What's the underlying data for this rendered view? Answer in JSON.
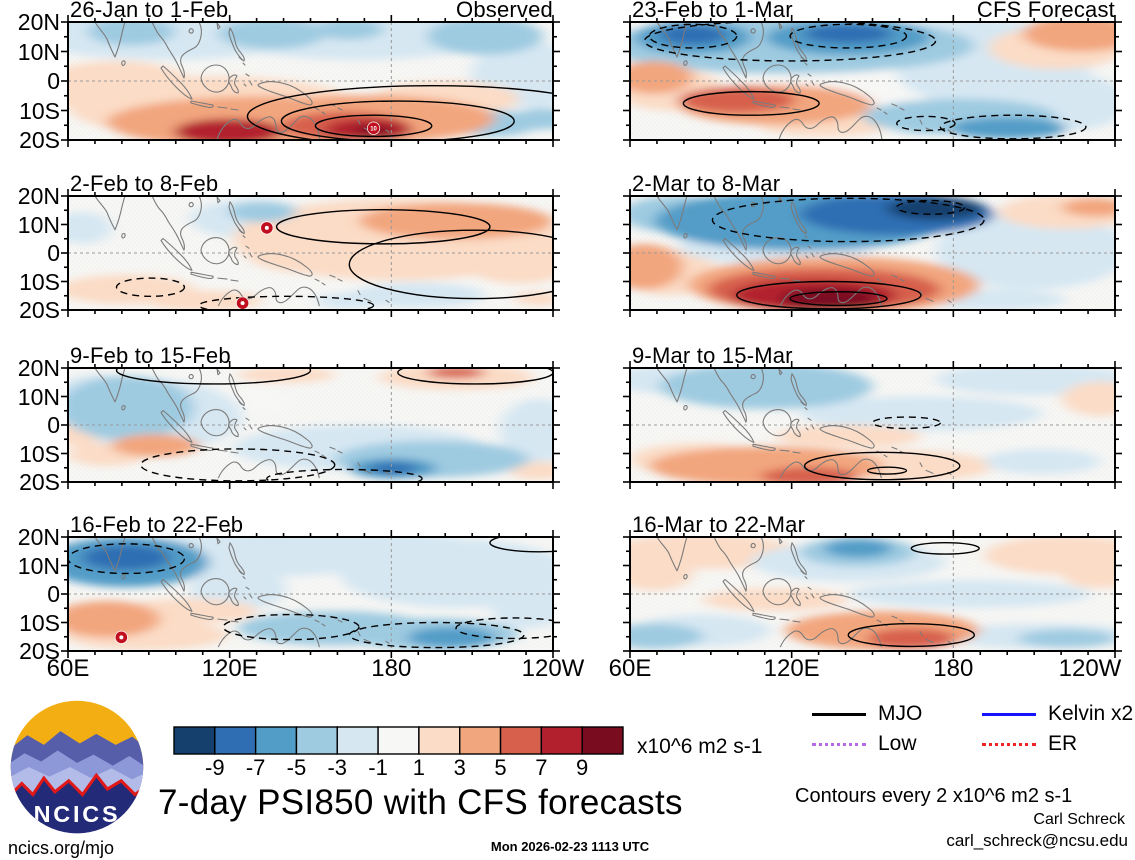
{
  "logo": {
    "text": "NCICS"
  },
  "footer": {
    "site": "ncics.org/mjo",
    "main_title": "7-day PSI850 with CFS forecasts",
    "timestamp": "Mon 2026-02-23 1113 UTC",
    "author": "Carl Schreck",
    "email": "carl_schreck@ncsu.edu"
  },
  "colorbar": {
    "labels": [
      "-9",
      "-7",
      "-5",
      "-3",
      "-1",
      "1",
      "3",
      "5",
      "7",
      "9"
    ],
    "colors": [
      "#15406e",
      "#2f6eb3",
      "#529dc8",
      "#9fcbe1",
      "#d6e7f2",
      "#f7f7f5",
      "#fbdcc6",
      "#f2a67e",
      "#d7604d",
      "#b2202e",
      "#7a0c20"
    ],
    "units": "x10^6 m2 s-1"
  },
  "legend": {
    "items": [
      {
        "label": "MJO",
        "color": "#000000",
        "style": "solid"
      },
      {
        "label": "Kelvin x2",
        "color": "#1414ff",
        "style": "solid"
      },
      {
        "label": "Low",
        "color": "#b76ae8",
        "style": "dotted"
      },
      {
        "label": "ER",
        "color": "#f02424",
        "style": "dotted"
      }
    ],
    "note": "Contours every 2 x10^6 m2 s-1"
  },
  "chart_data": {
    "type": "filled-contour-map-grid",
    "variable": "7-day mean 850-hPa streamfunction (PSI850) anomaly",
    "units": "x10^6 m2 s-1",
    "contour_interval": "2 x10^6 m2 s-1",
    "x_tick_labels": [
      "60E",
      "120E",
      "180",
      "120W"
    ],
    "y_tick_labels": [
      "20N",
      "10N",
      "0",
      "10S",
      "20S"
    ],
    "columns": [
      {
        "heading": "Observed"
      },
      {
        "heading": "CFS Forecast"
      }
    ],
    "anomaly_format": "[x_pct, y_pct, rx_pct, ry_pct, color_index 0..10 mapping -10..+10 x10^6 m2 s-1]",
    "contour_format": "[x_pct, y_pct, rx_pct, ry_pct, line_style]",
    "cyclone_format": "[x_pct, y_pct, label]",
    "panels": [
      {
        "title": "26-Jan to 1-Feb",
        "tag": "Observed",
        "column": "left",
        "anomalies": [
          [
            20,
            10,
            30,
            22,
            4
          ],
          [
            60,
            12,
            28,
            20,
            4
          ],
          [
            13,
            8,
            9,
            12,
            3
          ],
          [
            42,
            10,
            11,
            13,
            3
          ],
          [
            58,
            6,
            7,
            9,
            3
          ],
          [
            86,
            12,
            12,
            16,
            3
          ],
          [
            95,
            45,
            12,
            28,
            4
          ],
          [
            88,
            86,
            9,
            11,
            3
          ],
          [
            98,
            82,
            6,
            9,
            3
          ],
          [
            10,
            55,
            16,
            22,
            6
          ],
          [
            30,
            72,
            30,
            26,
            6
          ],
          [
            40,
            85,
            32,
            22,
            7
          ],
          [
            62,
            82,
            26,
            20,
            7
          ],
          [
            33,
            93,
            11,
            11,
            9
          ],
          [
            57,
            88,
            13,
            12,
            8
          ],
          [
            62,
            91,
            9,
            9,
            9
          ],
          [
            63,
            92,
            4,
            4,
            10
          ],
          [
            78,
            65,
            15,
            15,
            6
          ]
        ],
        "contours": [
          [
            63,
            88,
            12,
            9,
            "solid"
          ],
          [
            68,
            84,
            24,
            17,
            "solid"
          ],
          [
            75,
            80,
            38,
            26,
            "solid"
          ]
        ],
        "cyclones": [
          [
            63,
            90,
            "10"
          ]
        ]
      },
      {
        "title": "2-Feb to 8-Feb",
        "column": "left",
        "anomalies": [
          [
            38,
            20,
            13,
            17,
            4
          ],
          [
            40,
            14,
            7,
            9,
            3
          ],
          [
            3,
            28,
            6,
            14,
            4
          ],
          [
            68,
            38,
            34,
            36,
            6
          ],
          [
            80,
            22,
            20,
            16,
            7
          ],
          [
            93,
            55,
            12,
            22,
            6
          ],
          [
            52,
            52,
            15,
            16,
            6
          ],
          [
            12,
            82,
            14,
            13,
            6
          ],
          [
            28,
            92,
            12,
            9,
            6
          ],
          [
            72,
            87,
            14,
            11,
            4
          ],
          [
            58,
            92,
            7,
            7,
            4
          ],
          [
            97,
            90,
            5,
            6,
            6
          ]
        ],
        "contours": [
          [
            65,
            27,
            22,
            15,
            "solid"
          ],
          [
            84,
            60,
            26,
            30,
            "solid"
          ],
          [
            17,
            80,
            7,
            8,
            "dashed"
          ],
          [
            45,
            96,
            18,
            8,
            "dashed"
          ]
        ],
        "cyclones": [
          [
            41,
            28,
            ""
          ],
          [
            36,
            94,
            ""
          ]
        ]
      },
      {
        "title": "9-Feb to 15-Feb",
        "column": "left",
        "anomalies": [
          [
            12,
            35,
            14,
            28,
            3
          ],
          [
            6,
            20,
            8,
            14,
            4
          ],
          [
            16,
            42,
            20,
            32,
            4
          ],
          [
            60,
            70,
            26,
            20,
            4
          ],
          [
            75,
            80,
            20,
            16,
            3
          ],
          [
            67,
            88,
            9,
            9,
            2
          ],
          [
            67,
            88,
            5,
            5,
            1
          ],
          [
            97,
            55,
            8,
            28,
            4
          ],
          [
            18,
            68,
            9,
            10,
            7
          ],
          [
            8,
            76,
            8,
            10,
            6
          ],
          [
            2,
            57,
            5,
            12,
            6
          ],
          [
            80,
            8,
            16,
            11,
            6
          ],
          [
            80,
            4,
            6,
            5,
            8
          ],
          [
            97,
            90,
            6,
            8,
            6
          ],
          [
            45,
            6,
            10,
            7,
            6
          ],
          [
            35,
            30,
            12,
            10,
            5
          ]
        ],
        "contours": [
          [
            30,
            2,
            20,
            12,
            "solid"
          ],
          [
            84,
            4,
            16,
            10,
            "solid"
          ],
          [
            35,
            85,
            20,
            14,
            "dashed"
          ],
          [
            57,
            97,
            16,
            8,
            "dashed"
          ]
        ],
        "cyclones": []
      },
      {
        "title": "16-Feb to 22-Feb",
        "column": "left",
        "anomalies": [
          [
            12,
            22,
            17,
            22,
            2
          ],
          [
            12,
            18,
            9,
            11,
            1
          ],
          [
            40,
            15,
            28,
            20,
            4
          ],
          [
            62,
            10,
            24,
            14,
            4
          ],
          [
            80,
            32,
            24,
            30,
            4
          ],
          [
            35,
            45,
            10,
            20,
            4
          ],
          [
            55,
            80,
            20,
            15,
            3
          ],
          [
            75,
            85,
            18,
            14,
            3
          ],
          [
            79,
            88,
            9,
            9,
            2
          ],
          [
            8,
            72,
            11,
            16,
            7
          ],
          [
            16,
            86,
            17,
            13,
            6
          ],
          [
            25,
            65,
            14,
            11,
            6
          ],
          [
            95,
            60,
            8,
            20,
            4
          ]
        ],
        "contours": [
          [
            12,
            19,
            12,
            13,
            "dashed"
          ],
          [
            46,
            79,
            14,
            11,
            "dashed"
          ],
          [
            76,
            86,
            18,
            11,
            "dashed"
          ],
          [
            92,
            80,
            12,
            9,
            "dashed"
          ],
          [
            97,
            5,
            10,
            8,
            "solid"
          ]
        ],
        "cyclones": [
          [
            11,
            88,
            ""
          ]
        ]
      },
      {
        "title": "23-Feb to 1-Mar",
        "tag": "CFS Forecast",
        "column": "right",
        "anomalies": [
          [
            13,
            13,
            12,
            14,
            2
          ],
          [
            13,
            11,
            7,
            8,
            1
          ],
          [
            45,
            13,
            17,
            15,
            2
          ],
          [
            45,
            10,
            9,
            8,
            1
          ],
          [
            33,
            20,
            38,
            24,
            3
          ],
          [
            70,
            15,
            20,
            18,
            4
          ],
          [
            75,
            42,
            20,
            30,
            4
          ],
          [
            93,
            10,
            12,
            15,
            7
          ],
          [
            88,
            22,
            14,
            18,
            6
          ],
          [
            5,
            47,
            8,
            14,
            7
          ],
          [
            8,
            57,
            11,
            18,
            6
          ],
          [
            22,
            66,
            12,
            11,
            8
          ],
          [
            30,
            70,
            20,
            17,
            7
          ],
          [
            40,
            86,
            14,
            11,
            6
          ],
          [
            62,
            86,
            9,
            9,
            3
          ],
          [
            78,
            90,
            12,
            9,
            2
          ],
          [
            68,
            80,
            20,
            15,
            3
          ],
          [
            90,
            68,
            13,
            24,
            4
          ],
          [
            55,
            55,
            30,
            15,
            5
          ]
        ],
        "contours": [
          [
            13,
            12,
            9,
            10,
            "dashed"
          ],
          [
            45,
            12,
            12,
            10,
            "dashed"
          ],
          [
            33,
            16,
            30,
            17,
            "dashed"
          ],
          [
            25,
            69,
            14,
            10,
            "solid"
          ],
          [
            61,
            86,
            6,
            6,
            "dashed"
          ],
          [
            79,
            89,
            15,
            10,
            "dashed"
          ]
        ],
        "cyclones": []
      },
      {
        "title": "2-Mar to 8-Mar",
        "column": "right",
        "anomalies": [
          [
            35,
            22,
            30,
            26,
            2
          ],
          [
            55,
            16,
            20,
            18,
            1
          ],
          [
            63,
            11,
            10,
            10,
            0
          ],
          [
            10,
            16,
            12,
            16,
            3
          ],
          [
            83,
            48,
            20,
            34,
            4
          ],
          [
            90,
            14,
            14,
            15,
            6
          ],
          [
            96,
            10,
            7,
            8,
            7
          ],
          [
            3,
            62,
            8,
            20,
            7
          ],
          [
            8,
            67,
            10,
            20,
            6
          ],
          [
            42,
            78,
            30,
            25,
            7
          ],
          [
            40,
            82,
            24,
            19,
            8
          ],
          [
            38,
            87,
            17,
            14,
            9
          ],
          [
            41,
            90,
            10,
            9,
            10
          ],
          [
            75,
            91,
            15,
            9,
            4
          ],
          [
            30,
            45,
            20,
            15,
            4
          ]
        ],
        "contours": [
          [
            45,
            21,
            28,
            19,
            "dashed"
          ],
          [
            62,
            10,
            7,
            6,
            "dashed"
          ],
          [
            41,
            87,
            19,
            12,
            "solid"
          ],
          [
            43,
            90,
            10,
            6,
            "solid"
          ]
        ],
        "cyclones": []
      },
      {
        "title": "9-Mar to 15-Mar",
        "column": "right",
        "anomalies": [
          [
            28,
            16,
            22,
            20,
            3
          ],
          [
            32,
            13,
            12,
            12,
            3
          ],
          [
            6,
            10,
            9,
            12,
            4
          ],
          [
            83,
            10,
            20,
            14,
            4
          ],
          [
            97,
            27,
            8,
            15,
            6
          ],
          [
            28,
            86,
            24,
            17,
            7
          ],
          [
            14,
            80,
            14,
            14,
            6
          ],
          [
            37,
            95,
            10,
            8,
            8
          ],
          [
            55,
            86,
            20,
            14,
            6
          ],
          [
            85,
            82,
            12,
            11,
            4
          ],
          [
            60,
            40,
            25,
            15,
            4
          ],
          [
            45,
            60,
            15,
            10,
            6
          ]
        ],
        "contours": [
          [
            52,
            86,
            16,
            12,
            "solid"
          ],
          [
            53,
            90,
            4,
            3,
            "solid"
          ],
          [
            57,
            48,
            7,
            5,
            "dashed"
          ]
        ],
        "cyclones": []
      },
      {
        "title": "16-Mar to 22-Mar",
        "column": "right",
        "anomalies": [
          [
            15,
            13,
            20,
            15,
            6
          ],
          [
            5,
            32,
            8,
            15,
            6
          ],
          [
            47,
            13,
            12,
            13,
            3
          ],
          [
            47,
            10,
            7,
            8,
            2
          ],
          [
            45,
            22,
            20,
            17,
            4
          ],
          [
            90,
            16,
            17,
            17,
            6
          ],
          [
            97,
            32,
            8,
            13,
            6
          ],
          [
            52,
            82,
            20,
            17,
            7
          ],
          [
            58,
            89,
            9,
            9,
            8
          ],
          [
            5,
            87,
            10,
            11,
            3
          ],
          [
            15,
            82,
            14,
            14,
            4
          ],
          [
            85,
            87,
            20,
            11,
            4
          ],
          [
            90,
            89,
            10,
            8,
            3
          ],
          [
            70,
            50,
            25,
            12,
            4
          ],
          [
            30,
            55,
            15,
            10,
            6
          ]
        ],
        "contours": [
          [
            65,
            10,
            7,
            5,
            "solid"
          ],
          [
            58,
            86,
            13,
            10,
            "solid"
          ]
        ],
        "cyclones": []
      }
    ]
  }
}
